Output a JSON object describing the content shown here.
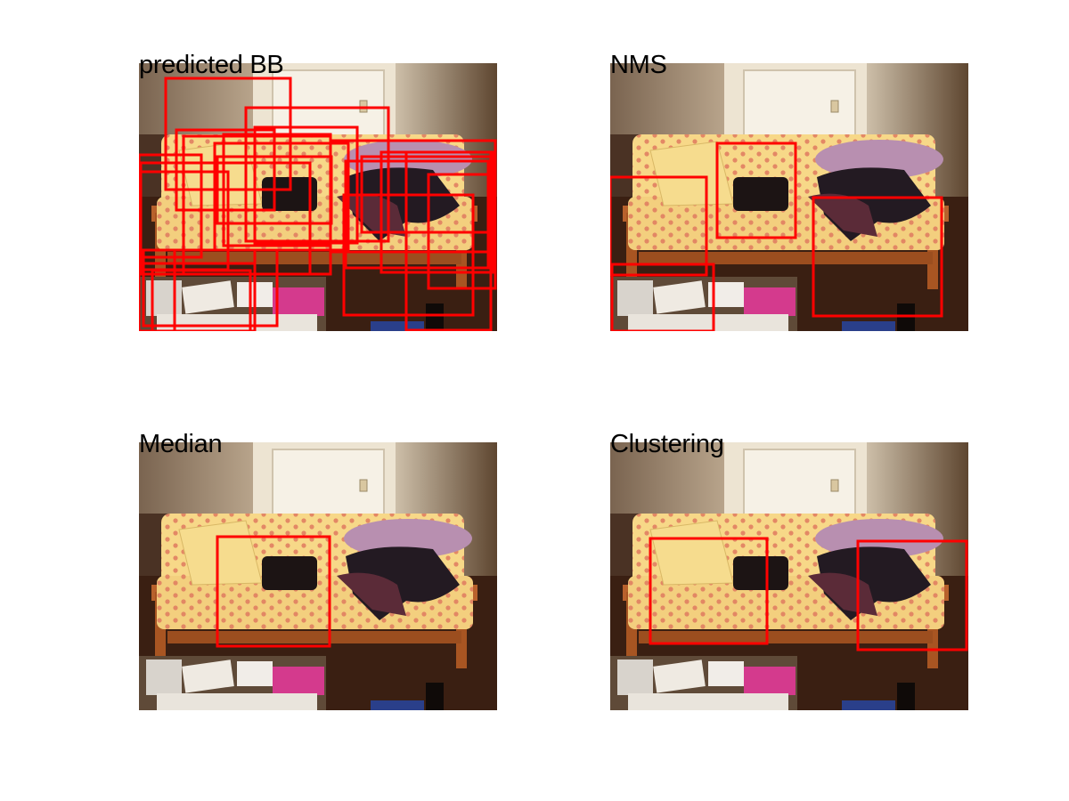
{
  "panels": [
    {
      "id": "predicted",
      "title": "predicted BB"
    },
    {
      "id": "nms",
      "title": "NMS"
    },
    {
      "id": "median",
      "title": "Median"
    },
    {
      "id": "clustering",
      "title": "Clustering"
    }
  ],
  "box_color": "#ff0000"
}
